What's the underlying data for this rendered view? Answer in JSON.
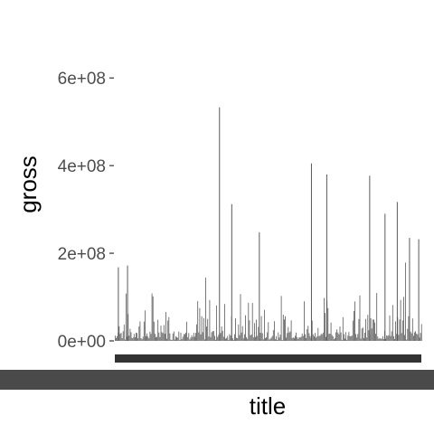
{
  "chart_data": {
    "type": "bar",
    "xlabel": "title",
    "ylabel": "gross",
    "ylim": [
      0,
      650000000
    ],
    "y_ticks": [
      0,
      200000000,
      400000000,
      600000000
    ],
    "y_tick_labels": [
      "0e+00",
      "2e+08",
      "4e+08",
      "6e+08"
    ],
    "x_tick_labels_note": "category labels overplotted and illegible",
    "bar_color": "#595959",
    "grid": false,
    "highlights": [
      {
        "x": 0.34,
        "value": 533000000
      },
      {
        "x": 0.38,
        "value": 312000000
      },
      {
        "x": 0.47,
        "value": 248000000
      },
      {
        "x": 0.64,
        "value": 405000000
      },
      {
        "x": 0.69,
        "value": 380000000
      },
      {
        "x": 0.83,
        "value": 377000000
      },
      {
        "x": 0.88,
        "value": 290000000
      },
      {
        "x": 0.92,
        "value": 317000000
      },
      {
        "x": 0.96,
        "value": 235000000
      },
      {
        "x": 0.99,
        "value": 232000000
      },
      {
        "x": 0.01,
        "value": 168000000
      },
      {
        "x": 0.04,
        "value": 172000000
      }
    ]
  }
}
